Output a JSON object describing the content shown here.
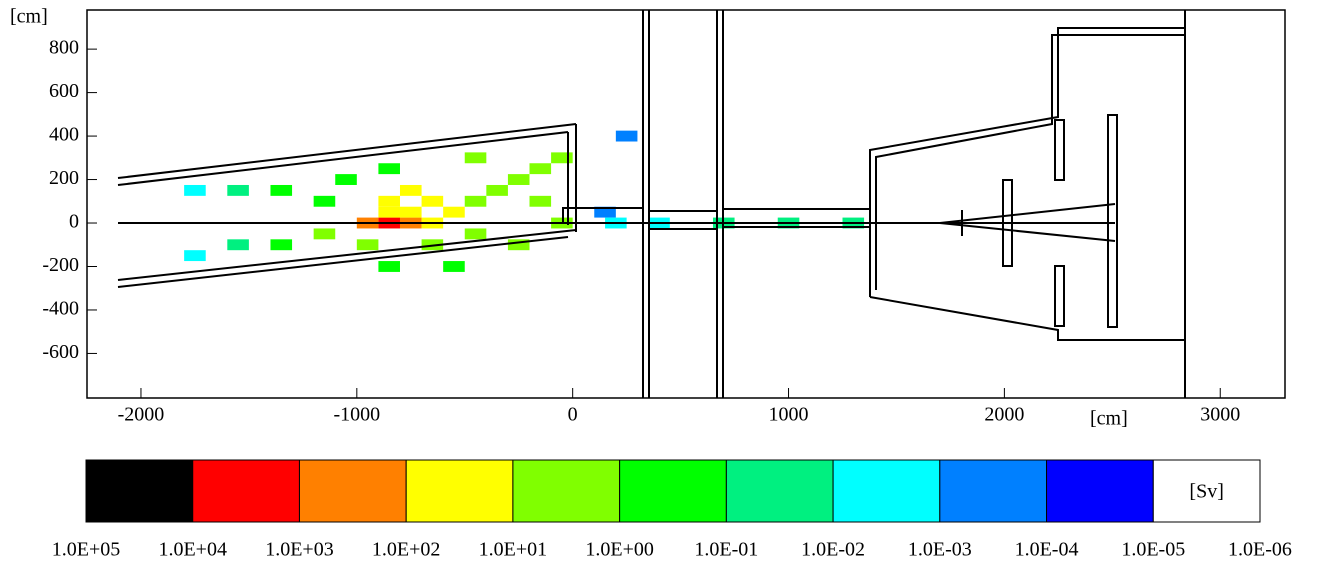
{
  "chart_data": {
    "type": "heatmap",
    "xlabel": "[cm]",
    "ylabel": "[cm]",
    "xlim": [
      -2250,
      3300
    ],
    "xticks": [
      -2000,
      -1000,
      0,
      1000,
      2000,
      3000
    ],
    "ylim": [
      -805,
      980
    ],
    "yticks": [
      -600,
      -400,
      -200,
      0,
      200,
      400,
      600,
      800
    ],
    "x": [
      -850,
      -750,
      -950,
      -850,
      -750,
      -650,
      -550,
      -850,
      -750,
      -650,
      -450,
      -350,
      -250,
      -150,
      -150,
      -50,
      -50,
      -450,
      -650,
      -950,
      -1150,
      -1150,
      -1350,
      -1550,
      -1350,
      -1550,
      -1750,
      -1750,
      -450,
      -850,
      -850,
      -550,
      -250,
      -1050,
      150,
      250,
      200,
      400,
      700,
      1000,
      1300
    ],
    "y": [
      0,
      0,
      0,
      50,
      50,
      0,
      50,
      100,
      150,
      100,
      100,
      150,
      200,
      250,
      100,
      300,
      0,
      -50,
      -100,
      -100,
      -50,
      100,
      150,
      150,
      -100,
      -100,
      150,
      -150,
      300,
      250,
      -200,
      -200,
      -100,
      200,
      50,
      400,
      0,
      0,
      0,
      0,
      0
    ],
    "values": [
      2000,
      500,
      500,
      50,
      50,
      50,
      30,
      20,
      20,
      30,
      5,
      5,
      3,
      3,
      5,
      2,
      5,
      5,
      3,
      2,
      2,
      1,
      0.5,
      0.05,
      0.5,
      0.05,
      0.005,
      0.005,
      2,
      0.5,
      0.5,
      1,
      2,
      0.5,
      0.0005,
      0.0005,
      0.005,
      0.005,
      0.05,
      0.05,
      0.05
    ],
    "colorbar": {
      "unit": "[Sv]",
      "colors": [
        "#000000",
        "#ff0000",
        "#ff8000",
        "#ffff00",
        "#80ff00",
        "#00ff00",
        "#00f080",
        "#00ffff",
        "#0080ff",
        "#0000ff",
        "#ffffff"
      ],
      "ticks": [
        {
          "value": 100000,
          "label": "1.0E+05"
        },
        {
          "value": 10000,
          "label": "1.0E+04"
        },
        {
          "value": 1000,
          "label": "1.0E+03"
        },
        {
          "value": 100,
          "label": "1.0E+02"
        },
        {
          "value": 10,
          "label": "1.0E+01"
        },
        {
          "value": 1,
          "label": "1.0E+00"
        },
        {
          "value": 0.1,
          "label": "1.0E-01"
        },
        {
          "value": 0.01,
          "label": "1.0E-02"
        },
        {
          "value": 0.001,
          "label": "1.0E-03"
        },
        {
          "value": 0.0001,
          "label": "1.0E-04"
        },
        {
          "value": 1e-05,
          "label": "1.0E-05"
        },
        {
          "value": 1e-06,
          "label": "1.0E-06"
        }
      ]
    }
  }
}
